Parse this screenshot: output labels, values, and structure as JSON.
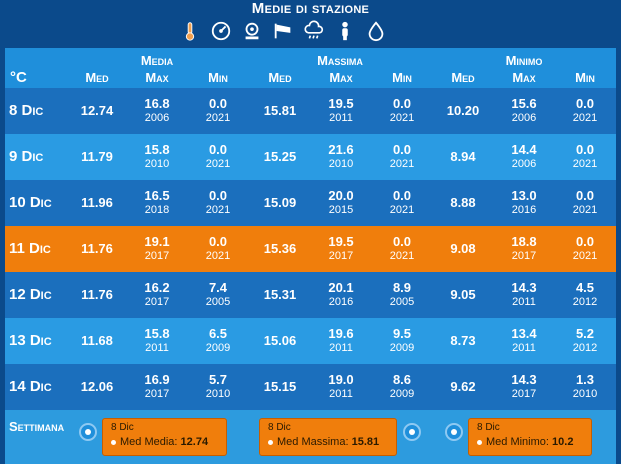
{
  "title": "Medie di stazione",
  "icons": [
    "thermometer-icon",
    "pressure-gauge-icon",
    "wind-speed-icon",
    "windsock-icon",
    "rain-cloud-icon",
    "person-icon",
    "water-drop-icon"
  ],
  "unit": "°C",
  "groups": [
    "Media",
    "Massima",
    "Minimo"
  ],
  "subheaders": [
    "Med",
    "Max",
    "Min",
    "Med",
    "Max",
    "Min",
    "Med",
    "Max",
    "Min"
  ],
  "rows": [
    {
      "date": "8 Dic",
      "media_med": "12.74",
      "media_max": "16.8",
      "media_max_year": "2006",
      "media_min": "0.0",
      "media_min_year": "2021",
      "massima_med": "15.81",
      "massima_max": "19.5",
      "massima_max_year": "2011",
      "massima_min": "0.0",
      "massima_min_year": "2021",
      "minimo_med": "10.20",
      "minimo_max": "15.6",
      "minimo_max_year": "2006",
      "minimo_min": "0.0",
      "minimo_min_year": "2021"
    },
    {
      "date": "9 Dic",
      "media_med": "11.79",
      "media_max": "15.8",
      "media_max_year": "2010",
      "media_min": "0.0",
      "media_min_year": "2021",
      "massima_med": "15.25",
      "massima_max": "21.6",
      "massima_max_year": "2010",
      "massima_min": "0.0",
      "massima_min_year": "2021",
      "minimo_med": "8.94",
      "minimo_max": "14.4",
      "minimo_max_year": "2006",
      "minimo_min": "0.0",
      "minimo_min_year": "2021"
    },
    {
      "date": "10 Dic",
      "media_med": "11.96",
      "media_max": "16.5",
      "media_max_year": "2018",
      "media_min": "0.0",
      "media_min_year": "2021",
      "massima_med": "15.09",
      "massima_max": "20.0",
      "massima_max_year": "2015",
      "massima_min": "0.0",
      "massima_min_year": "2021",
      "minimo_med": "8.88",
      "minimo_max": "13.0",
      "minimo_max_year": "2016",
      "minimo_min": "0.0",
      "minimo_min_year": "2021"
    },
    {
      "date": "11 Dic",
      "media_med": "11.76",
      "media_max": "19.1",
      "media_max_year": "2017",
      "media_min": "0.0",
      "media_min_year": "2021",
      "massima_med": "15.36",
      "massima_max": "19.5",
      "massima_max_year": "2017",
      "massima_min": "0.0",
      "massima_min_year": "2021",
      "minimo_med": "9.08",
      "minimo_max": "18.8",
      "minimo_max_year": "2017",
      "minimo_min": "0.0",
      "minimo_min_year": "2021"
    },
    {
      "date": "12 Dic",
      "media_med": "11.76",
      "media_max": "16.2",
      "media_max_year": "2017",
      "media_min": "7.4",
      "media_min_year": "2005",
      "massima_med": "15.31",
      "massima_max": "20.1",
      "massima_max_year": "2016",
      "massima_min": "8.9",
      "massima_min_year": "2005",
      "minimo_med": "9.05",
      "minimo_max": "14.3",
      "minimo_max_year": "2011",
      "minimo_min": "4.5",
      "minimo_min_year": "2012"
    },
    {
      "date": "13 Dic",
      "media_med": "11.68",
      "media_max": "15.8",
      "media_max_year": "2011",
      "media_min": "6.5",
      "media_min_year": "2009",
      "massima_med": "15.06",
      "massima_max": "19.6",
      "massima_max_year": "2011",
      "massima_min": "9.5",
      "massima_min_year": "2009",
      "minimo_med": "8.73",
      "minimo_max": "13.4",
      "minimo_max_year": "2011",
      "minimo_min": "5.2",
      "minimo_min_year": "2012"
    },
    {
      "date": "14 Dic",
      "media_med": "12.06",
      "media_max": "16.9",
      "media_max_year": "2017",
      "media_min": "5.7",
      "media_min_year": "2010",
      "massima_med": "15.15",
      "massima_max": "19.0",
      "massima_max_year": "2011",
      "massima_min": "8.6",
      "massima_min_year": "2009",
      "minimo_med": "9.62",
      "minimo_max": "14.3",
      "minimo_max_year": "2017",
      "minimo_min": "1.3",
      "minimo_min_year": "2010"
    }
  ],
  "week": {
    "label": "Settimana",
    "tooltips": [
      {
        "date": "8 Dic",
        "label": "Med Media: ",
        "value": "12.74"
      },
      {
        "date": "8 Dic",
        "label": "Med Massima: ",
        "value": "15.81"
      },
      {
        "date": "8 Dic",
        "label": "Med Minimo: ",
        "value": "10.2"
      }
    ]
  },
  "colors": {
    "background": "#0b4a8b",
    "row_dark": "#1b6fbd",
    "row_light": "#2a9be3",
    "highlight": "#f07e0c",
    "icon_thermo": "#f0a050"
  }
}
